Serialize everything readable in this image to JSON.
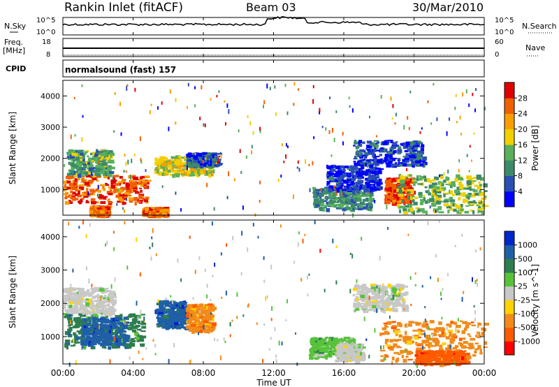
{
  "header": {
    "station": "Rankin Inlet (fitACF)",
    "beam": "Beam 03",
    "date": "30/Mar/2010"
  },
  "aux": {
    "nsky_label": "N.Sky",
    "nsky_ticks": [
      "10^5",
      "10^0"
    ],
    "nsearch_label": "N.Search",
    "nsearch_ticks": [
      "10^5",
      "10^0"
    ],
    "freq_label": "Freq.",
    "freq_unit": "[MHz]",
    "freq_ticks": [
      "18",
      "8"
    ],
    "nave_label": "Nave",
    "nave_ticks": [
      "60",
      "0"
    ],
    "cpid_label": "CPID",
    "cpid_text": "normalsound (fast) 157"
  },
  "colors": {
    "power": [
      "#0000ff",
      "#2a4fb3",
      "#3d8a6a",
      "#58b05a",
      "#f0d000",
      "#f7a000",
      "#f06000",
      "#e00000"
    ],
    "velocity": [
      "#ff0000",
      "#ff5a00",
      "#f28a1a",
      "#ffd200",
      "#c8c8c8",
      "#57c33a",
      "#2e7d4f",
      "#1f5fa8",
      "#0026cc"
    ]
  },
  "chart_data": [
    {
      "type": "heatmap",
      "name": "power",
      "ylabel": "Slant Range [km]",
      "yticks": [
        "4000",
        "3000",
        "2000",
        "1000"
      ],
      "ylim": [
        180,
        4500
      ],
      "xlim": [
        0,
        24
      ],
      "colorbar_label": "Power [dB]",
      "colorbar_ticks": [
        "28",
        "24",
        "20",
        "16",
        "12",
        "8",
        "4"
      ],
      "range": [
        0,
        32
      ],
      "blobs": [
        {
          "t0": 0.0,
          "t1": 4.8,
          "r0": 600,
          "r1": 1500,
          "v": 26
        },
        {
          "t0": 0.2,
          "t1": 2.7,
          "r0": 1500,
          "r1": 2300,
          "v": 12
        },
        {
          "t0": 5.2,
          "t1": 8.5,
          "r0": 1500,
          "r1": 2100,
          "v": 18
        },
        {
          "t0": 7.0,
          "t1": 8.8,
          "r0": 1800,
          "r1": 2200,
          "v": 6
        },
        {
          "t0": 4.5,
          "t1": 5.8,
          "r0": 200,
          "r1": 450,
          "v": 26
        },
        {
          "t0": 1.5,
          "t1": 2.5,
          "r0": 200,
          "r1": 500,
          "v": 24
        },
        {
          "t0": 14.2,
          "t1": 17.5,
          "r0": 400,
          "r1": 1100,
          "v": 10
        },
        {
          "t0": 15.0,
          "t1": 18.0,
          "r0": 1000,
          "r1": 1800,
          "v": 4
        },
        {
          "t0": 18.3,
          "t1": 19.8,
          "r0": 600,
          "r1": 1400,
          "v": 28
        },
        {
          "t0": 19.0,
          "t1": 24.0,
          "r0": 300,
          "r1": 1500,
          "v": 14
        },
        {
          "t0": 16.5,
          "t1": 20.5,
          "r0": 1800,
          "r1": 2600,
          "v": 5
        }
      ]
    },
    {
      "type": "heatmap",
      "name": "velocity",
      "ylabel": "Slant Range [km]",
      "yticks": [
        "4000",
        "3000",
        "2000",
        "1000"
      ],
      "ylim": [
        180,
        4500
      ],
      "xlim": [
        0,
        24
      ],
      "colorbar_label": "Velocity [m s^-1]",
      "colorbar_ticks": [
        "1000",
        "500",
        "100",
        "25",
        "-25",
        "-100",
        "-500",
        "-1000"
      ],
      "blobs": [
        {
          "t0": 0.0,
          "t1": 2.8,
          "r0": 1700,
          "r1": 2500,
          "c": 4
        },
        {
          "t0": 0.0,
          "t1": 4.5,
          "r0": 700,
          "r1": 1700,
          "c": 6
        },
        {
          "t0": 1.0,
          "t1": 3.5,
          "r0": 800,
          "r1": 1600,
          "c": 7
        },
        {
          "t0": 5.3,
          "t1": 7.0,
          "r0": 1300,
          "r1": 2100,
          "c": 7
        },
        {
          "t0": 7.0,
          "t1": 8.5,
          "r0": 1200,
          "r1": 2000,
          "c": 2
        },
        {
          "t0": 14.0,
          "t1": 16.5,
          "r0": 400,
          "r1": 1000,
          "c": 5
        },
        {
          "t0": 15.5,
          "t1": 17.0,
          "r0": 300,
          "r1": 800,
          "c": 4
        },
        {
          "t0": 18.0,
          "t1": 24.0,
          "r0": 300,
          "r1": 1500,
          "c": 2
        },
        {
          "t0": 20.0,
          "t1": 23.0,
          "r0": 200,
          "r1": 600,
          "c": 1
        },
        {
          "t0": 16.5,
          "t1": 19.5,
          "r0": 1800,
          "r1": 2600,
          "c": 4
        }
      ]
    }
  ],
  "xaxis": {
    "label": "Time UT",
    "ticks": [
      "00:00",
      "04:00",
      "08:00",
      "12:00",
      "16:00",
      "20:00",
      "00:00"
    ]
  }
}
